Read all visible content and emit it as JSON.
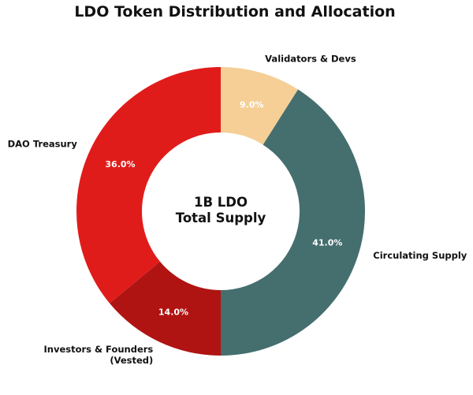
{
  "chart_data": {
    "type": "pie",
    "style": "donut",
    "title": "LDO Token Distribution and Allocation",
    "center_text": [
      "1B LDO",
      "Total Supply"
    ],
    "start_angle": "top",
    "direction": "clockwise",
    "slices": [
      {
        "label": "Validators & Devs",
        "value": 9.0,
        "pct_label": "9.0%",
        "color": "#F5CF96"
      },
      {
        "label": "Circulating Supply",
        "value": 41.0,
        "pct_label": "41.0%",
        "color": "#456E6E"
      },
      {
        "label": "Investors & Founders\n(Vested)",
        "value": 14.0,
        "pct_label": "14.0%",
        "color": "#B01412"
      },
      {
        "label": "DAO Treasury",
        "value": 36.0,
        "pct_label": "36.0%",
        "color": "#E01C1A"
      }
    ]
  }
}
